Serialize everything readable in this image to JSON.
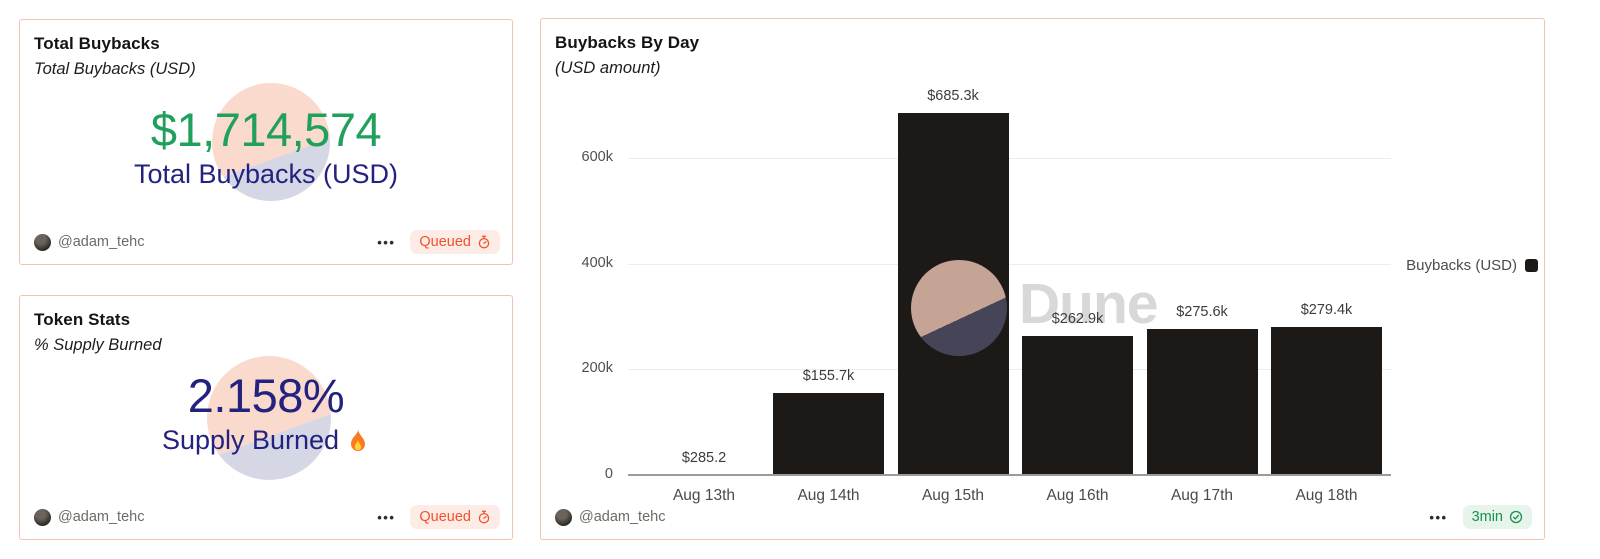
{
  "page": {
    "background": "#ffffff",
    "card_border_color": "#f2c3af"
  },
  "icons": {
    "menu": "•••"
  },
  "watermark": {
    "brand_text": "Dune"
  },
  "cards": {
    "total_buybacks": {
      "title": "Total Buybacks",
      "subtitle": "Total Buybacks (USD)",
      "value": "$1,714,574",
      "value_color": "#21a05c",
      "value_label": "Total Buybacks (USD)",
      "value_label_color": "#23227e",
      "author": "@adam_tehc",
      "status": {
        "label": "Queued",
        "icon": "stopwatch-icon",
        "text_color": "#f1512e",
        "bg_color": "#fdece5"
      }
    },
    "token_stats": {
      "title": "Token Stats",
      "subtitle": "% Supply Burned",
      "value": "2.158%",
      "value_color": "#23227e",
      "value_label": "Supply Burned",
      "value_label_icon": "flame-icon",
      "author": "@adam_tehc",
      "status": {
        "label": "Queued",
        "icon": "stopwatch-icon",
        "text_color": "#f1512e",
        "bg_color": "#fdece5"
      }
    },
    "buybacks_by_day": {
      "title": "Buybacks By Day",
      "subtitle": "(USD amount)",
      "author": "@adam_tehc",
      "status": {
        "label": "3min",
        "icon": "check-badge-icon",
        "text_color": "#169150",
        "bg_color": "#e6f4ec"
      }
    }
  },
  "chart_data": {
    "type": "bar",
    "title": "Buybacks By Day",
    "subtitle": "(USD amount)",
    "categories": [
      "Aug 13th",
      "Aug 14th",
      "Aug 15th",
      "Aug 16th",
      "Aug 17th",
      "Aug 18th"
    ],
    "values": [
      285.2,
      155700,
      685300,
      262900,
      275600,
      279400
    ],
    "bar_labels": [
      "$285.2",
      "$155.7k",
      "$685.3k",
      "$262.9k",
      "$275.6k",
      "$279.4k"
    ],
    "series_name": "Buybacks (USD)",
    "bar_color": "#1c1916",
    "yticks": [
      {
        "value": 0,
        "label": "0"
      },
      {
        "value": 200000,
        "label": "200k"
      },
      {
        "value": 400000,
        "label": "400k"
      },
      {
        "value": 600000,
        "label": "600k"
      }
    ],
    "ylim": [
      0,
      690000
    ],
    "xlabel": "",
    "ylabel": "",
    "grid": true,
    "legend_position": "right"
  }
}
